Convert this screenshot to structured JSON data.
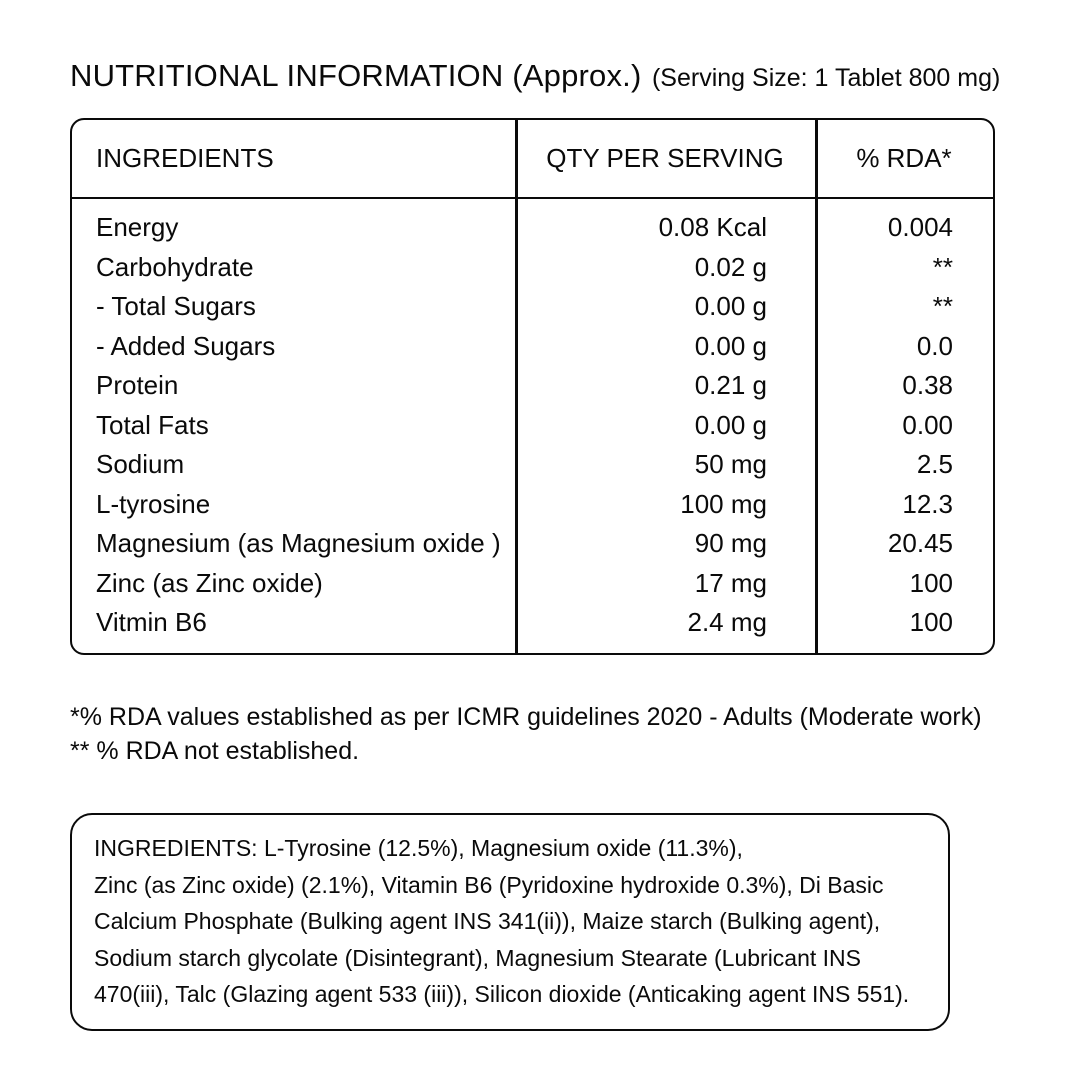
{
  "title": {
    "main": "NUTRITIONAL INFORMATION (Approx.)",
    "serving": "(Serving Size: 1 Tablet 800 mg)"
  },
  "table": {
    "headers": [
      "INGREDIENTS",
      "QTY PER SERVING",
      "% RDA*"
    ],
    "rows": [
      {
        "name": "Energy",
        "qty": "0.08 Kcal",
        "rda": "0.004"
      },
      {
        "name": "Carbohydrate",
        "qty": "0.02 g",
        "rda": "**"
      },
      {
        "name": "- Total Sugars",
        "qty": "0.00 g",
        "rda": "**"
      },
      {
        "name": "- Added Sugars",
        "qty": "0.00 g",
        "rda": "0.0"
      },
      {
        "name": "Protein",
        "qty": "0.21 g",
        "rda": "0.38"
      },
      {
        "name": "Total Fats",
        "qty": "0.00 g",
        "rda": "0.00"
      },
      {
        "name": "Sodium",
        "qty": "50 mg",
        "rda": "2.5"
      },
      {
        "name": "L-tyrosine",
        "qty": "100 mg",
        "rda": "12.3"
      },
      {
        "name": "Magnesium (as Magnesium oxide )",
        "qty": "90 mg",
        "rda": "20.45"
      },
      {
        "name": "Zinc (as Zinc oxide)",
        "qty": "17 mg",
        "rda": "100"
      },
      {
        "name": "Vitmin B6",
        "qty": "2.4 mg",
        "rda": "100"
      }
    ]
  },
  "footnotes": {
    "line1": "*% RDA values established as per ICMR guidelines 2020 - Adults (Moderate work)",
    "line2": "** % RDA not established."
  },
  "ingredients_box": {
    "lines": [
      "INGREDIENTS: L-Tyrosine (12.5%), Magnesium oxide (11.3%),",
      "Zinc (as Zinc oxide) (2.1%), Vitamin B6 (Pyridoxine hydroxide 0.3%), Di Basic",
      "Calcium Phosphate (Bulking agent INS 341(ii)), Maize starch (Bulking agent),",
      "Sodium starch glycolate (Disintegrant), Magnesium Stearate (Lubricant INS",
      "470(iii), Talc (Glazing agent 533 (iii)), Silicon dioxide (Anticaking agent INS 551)."
    ]
  }
}
